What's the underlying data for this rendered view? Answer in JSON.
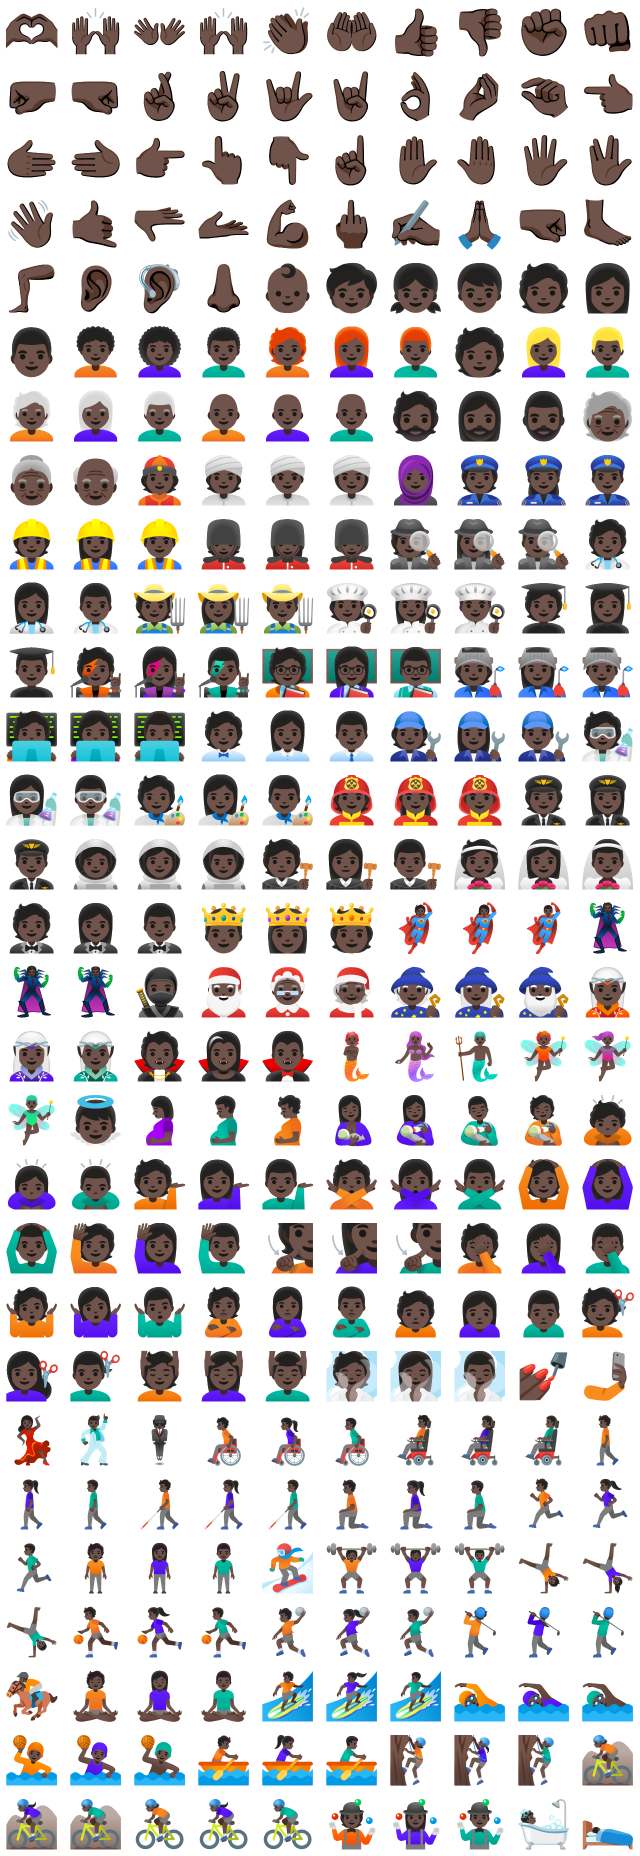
{
  "sheet": {
    "columns": 10,
    "emoji": [
      "🫶🏿",
      "🙌🏿",
      "👐🏿",
      "🙌🏿",
      "👏🏿",
      "🤲🏿",
      "👍🏿",
      "👎🏿",
      "✊🏿",
      "👊🏿",
      "🤛🏿",
      "🤜🏿",
      "🤞🏿",
      "✌🏿",
      "🤟🏿",
      "🤘🏿",
      "👌🏿",
      "🤌🏿",
      "🤏🏿",
      "👈🏿",
      "🫱🏿",
      "🫲🏿",
      "👉🏿",
      "👆🏿",
      "👇🏿",
      "☝🏿",
      "✋🏿",
      "🤚🏿",
      "🖐🏿",
      "🖖🏿",
      "👋🏿",
      "🤙🏿",
      "🫳🏿",
      "🫴🏿",
      "💪🏿",
      "🖕🏿",
      "✍🏿",
      "🙏🏿",
      "🤜🏿",
      "🦶🏿",
      "🦵🏿",
      "👂🏿",
      "🦻🏿",
      "👃🏿",
      "👶🏿",
      "🧒🏿",
      "👧🏿",
      "👦🏿",
      "🧑🏿",
      "👩🏿",
      "👨🏿",
      "🧑🏿‍🦱",
      "👩🏿‍🦱",
      "👨🏿‍🦱",
      "🧑🏿‍🦰",
      "👩🏿‍🦰",
      "👨🏿‍🦰",
      "🧑🏿",
      "👱🏿‍♀️",
      "👱🏿‍♂️",
      "🧑🏿‍🦳",
      "👩🏿‍🦳",
      "👨🏿‍🦳",
      "🧑🏿‍🦲",
      "👩🏿‍🦲",
      "👨🏿‍🦲",
      "🧔🏿",
      "🧔🏿‍♀️",
      "🧔🏿‍♂️",
      "🧓🏿",
      "👵🏿",
      "👴🏿",
      "👲🏿",
      "👳🏿",
      "👳🏿‍♂️",
      "👳🏿‍♀️",
      "🧕🏿",
      "👮🏿",
      "👮🏿‍♀️",
      "👮🏿‍♂️",
      "👷🏿",
      "👷🏿‍♀️",
      "👷🏿‍♂️",
      "💂🏿",
      "💂🏿‍♀️",
      "💂🏿‍♂️",
      "🕵🏿",
      "🕵🏿‍♀️",
      "🕵🏿‍♂️",
      "🧑🏿‍⚕️",
      "👩🏿‍⚕️",
      "👨🏿‍⚕️",
      "🧑🏿‍🌾",
      "👩🏿‍🌾",
      "👨🏿‍🌾",
      "🧑🏿‍🍳",
      "👩🏿‍🍳",
      "👨🏿‍🍳",
      "🧑🏿‍🎓",
      "👩🏿‍🎓",
      "👨🏿‍🎓",
      "🧑🏿‍🎤",
      "👩🏿‍🎤",
      "👨🏿‍🎤",
      "🧑🏿‍🏫",
      "👩🏿‍🏫",
      "👨🏿‍🏫",
      "🧑🏿‍🏭",
      "👩🏿‍🏭",
      "👨🏿‍🏭",
      "🧑🏿‍💻",
      "👩🏿‍💻",
      "👨🏿‍💻",
      "🧑🏿‍💼",
      "👩🏿‍💼",
      "👨🏿‍💼",
      "🧑🏿‍🔧",
      "👩🏿‍🔧",
      "👨🏿‍🔧",
      "🧑🏿‍🔬",
      "👩🏿‍🔬",
      "👨🏿‍🔬",
      "🧑🏿‍🎨",
      "👩🏿‍🎨",
      "👨🏿‍🎨",
      "🧑🏿‍🚒",
      "👩🏿‍🚒",
      "👨🏿‍🚒",
      "🧑🏿‍✈️",
      "👩🏿‍✈️",
      "👨🏿‍✈️",
      "🧑🏿‍🚀",
      "👩🏿‍🚀",
      "👨🏿‍🚀",
      "🧑🏿‍⚖️",
      "👩🏿‍⚖️",
      "👨🏿‍⚖️",
      "👰🏿",
      "👰🏿‍♀️",
      "👰🏿‍♂️",
      "🤵🏿",
      "🤵🏿‍♀️",
      "🤵🏿‍♂️",
      "🤴🏿",
      "👸🏿",
      "🫅🏿",
      "🦸🏿",
      "🦸🏿‍♀️",
      "🦸🏿‍♂️",
      "🦹🏿",
      "🦹🏿‍♀️",
      "🦹🏿‍♂️",
      "🥷🏿",
      "🎅🏿",
      "🤶🏿",
      "🧑🏿‍🎄",
      "🧙🏿",
      "🧙🏿‍♀️",
      "🧙🏿‍♂️",
      "🧝🏿",
      "🧝🏿‍♀️",
      "🧝🏿‍♂️",
      "🧛🏿",
      "🧛🏿‍♀️",
      "🧛🏿‍♂️",
      "🧜🏿",
      "🧜🏿‍♀️",
      "🧜🏿‍♂️",
      "🧚🏿",
      "🧚🏿‍♀️",
      "🧚🏿‍♂️",
      "👼🏿",
      "🤰🏿",
      "🫃🏿",
      "🫄🏿",
      "🤱🏿",
      "👩🏿‍🍼",
      "👨🏿‍🍼",
      "🧑🏿‍🍼",
      "🙇🏿",
      "🙇🏿‍♀️",
      "🙇🏿‍♂️",
      "💁🏿",
      "💁🏿‍♀️",
      "💁🏿‍♂️",
      "🙅🏿",
      "🙅🏿‍♀️",
      "🙅🏿‍♂️",
      "🙆🏿",
      "🙆🏿‍♀️",
      "🙆🏿‍♂️",
      "🙋🏿",
      "🙋🏿‍♀️",
      "🙋🏿‍♂️",
      "🧏🏿",
      "🧏🏿‍♀️",
      "🧏🏿‍♂️",
      "🤦🏿",
      "🤦🏿‍♀️",
      "🤦🏿‍♂️",
      "🤷🏿",
      "🤷🏿‍♀️",
      "🤷🏿‍♂️",
      "🙎🏿",
      "🙎🏿‍♀️",
      "🙎🏿‍♂️",
      "🙍🏿",
      "🙍🏿‍♀️",
      "🙍🏿‍♂️",
      "💇🏿",
      "💇🏿‍♀️",
      "💇🏿‍♂️",
      "💆🏿",
      "💆🏿‍♀️",
      "💆🏿‍♂️",
      "🧖🏿",
      "🧖🏿‍♀️",
      "🧖🏿‍♂️",
      "💅🏿",
      "🤳🏿",
      "💃🏿",
      "🕺🏿",
      "🕴🏿",
      "🧑🏿‍🦽",
      "👩🏿‍🦽",
      "👨🏿‍🦽",
      "🧑🏿‍🦼",
      "👩🏿‍🦼",
      "👨🏿‍🦼",
      "🚶🏿",
      "🚶🏿‍♀️",
      "🚶🏿‍♂️",
      "🧑🏿‍🦯",
      "👩🏿‍🦯",
      "👨🏿‍🦯",
      "🧎🏿",
      "🧎🏿‍♀️",
      "🧎🏿‍♂️",
      "🏃🏿",
      "🏃🏿‍♀️",
      "🏃🏿‍♂️",
      "🧍🏿",
      "🧍🏿‍♀️",
      "🧍🏿‍♂️",
      "🏂🏿",
      "🏋🏿",
      "🏋🏿‍♀️",
      "🏋🏿‍♂️",
      "🤸🏿",
      "🤸🏿‍♀️",
      "🤸🏿‍♂️",
      "⛹🏿",
      "⛹🏿‍♀️",
      "⛹🏿‍♂️",
      "🤾🏿",
      "🤾🏿‍♀️",
      "🤾🏿‍♂️",
      "🏌🏿",
      "🏌🏿‍♀️",
      "🏌🏿‍♂️",
      "🏇🏿",
      "🧘🏿",
      "🧘🏿‍♀️",
      "🧘🏿‍♂️",
      "🏄🏿",
      "🏄🏿‍♀️",
      "🏄🏿‍♂️",
      "🏊🏿",
      "🏊🏿‍♀️",
      "🏊🏿‍♂️",
      "🤽🏿",
      "🤽🏿‍♀️",
      "🤽🏿‍♂️",
      "🚣🏿",
      "🚣🏿‍♀️",
      "🚣🏿‍♂️",
      "🧗🏿",
      "🧗🏿‍♀️",
      "🧗🏿‍♂️",
      "🚵🏿",
      "🚵🏿‍♀️",
      "🚵🏿‍♂️",
      "🚴🏿",
      "🚴🏿‍♀️",
      "🚴🏿‍♂️",
      "🤹🏿",
      "🤹🏿‍♀️",
      "🤹🏿‍♂️",
      "🛀🏿",
      "🛌🏿"
    ]
  }
}
